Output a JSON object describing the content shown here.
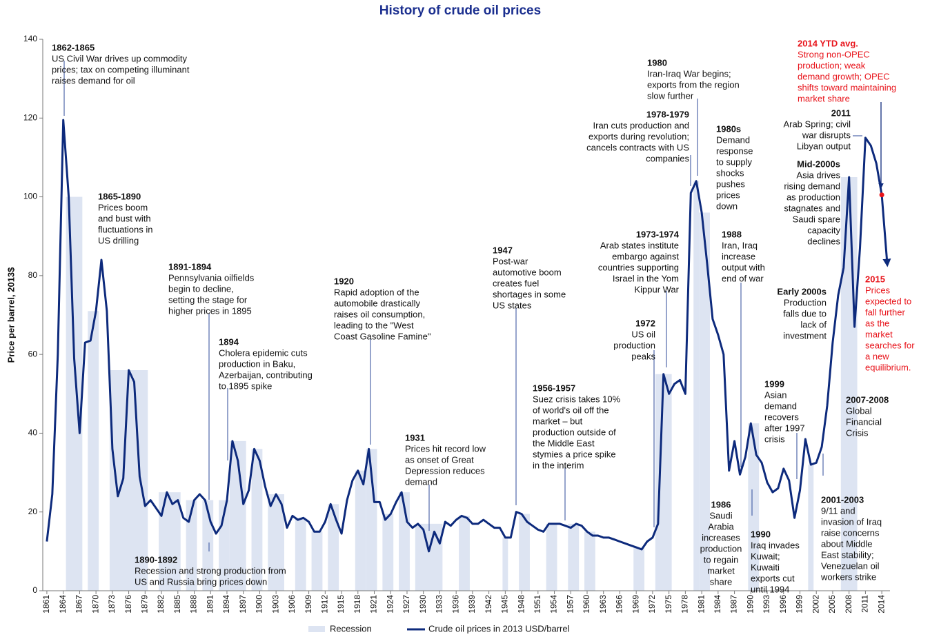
{
  "chart_data": {
    "type": "line",
    "title": "History of crude oil prices",
    "ylabel": "Price per barrel, 2013$",
    "xlim": [
      1860.25,
      2015.5
    ],
    "ylim": [
      0,
      140
    ],
    "yticks": [
      0,
      20,
      40,
      60,
      80,
      100,
      120,
      140
    ],
    "xticks": [
      1861,
      1864,
      1867,
      1870,
      1873,
      1876,
      1879,
      1882,
      1885,
      1888,
      1891,
      1894,
      1897,
      1900,
      1903,
      1906,
      1909,
      1912,
      1915,
      1918,
      1921,
      1924,
      1927,
      1930,
      1933,
      1936,
      1939,
      1942,
      1945,
      1948,
      1951,
      1954,
      1957,
      1960,
      1963,
      1966,
      1969,
      1972,
      1975,
      1978,
      1981,
      1984,
      1987,
      1990,
      1993,
      1996,
      1999,
      2002,
      2005,
      2008,
      2011,
      2014
    ],
    "x": [
      1861,
      1862,
      1863,
      1864,
      1865,
      1866,
      1867,
      1868,
      1869,
      1870,
      1871,
      1872,
      1873,
      1874,
      1875,
      1876,
      1877,
      1878,
      1879,
      1880,
      1881,
      1882,
      1883,
      1884,
      1885,
      1886,
      1887,
      1888,
      1889,
      1890,
      1891,
      1892,
      1893,
      1894,
      1895,
      1896,
      1897,
      1898,
      1899,
      1900,
      1901,
      1902,
      1903,
      1904,
      1905,
      1906,
      1907,
      1908,
      1909,
      1910,
      1911,
      1912,
      1913,
      1914,
      1915,
      1916,
      1917,
      1918,
      1919,
      1920,
      1921,
      1922,
      1923,
      1924,
      1925,
      1926,
      1927,
      1928,
      1929,
      1930,
      1931,
      1932,
      1933,
      1934,
      1935,
      1936,
      1937,
      1938,
      1939,
      1940,
      1941,
      1942,
      1943,
      1944,
      1945,
      1946,
      1947,
      1948,
      1949,
      1950,
      1951,
      1952,
      1953,
      1954,
      1955,
      1956,
      1957,
      1958,
      1959,
      1960,
      1961,
      1962,
      1963,
      1964,
      1965,
      1966,
      1967,
      1968,
      1969,
      1970,
      1971,
      1972,
      1973,
      1974,
      1975,
      1976,
      1977,
      1978,
      1979,
      1980,
      1981,
      1982,
      1983,
      1984,
      1985,
      1986,
      1987,
      1988,
      1989,
      1990,
      1991,
      1992,
      1993,
      1994,
      1995,
      1996,
      1997,
      1998,
      1999,
      2000,
      2001,
      2002,
      2003,
      2004,
      2005,
      2006,
      2007,
      2008,
      2009,
      2010,
      2011,
      2012,
      2013,
      2014,
      2015
    ],
    "series": [
      {
        "name": "Crude oil prices in 2013 USD/barrel",
        "color": "#0d2a7c",
        "values": [
          12.5,
          24.5,
          60,
          119.5,
          100,
          59,
          40,
          63,
          63.5,
          71,
          84,
          71,
          36,
          24,
          28.5,
          56,
          53,
          29,
          21.5,
          23,
          21,
          19,
          25,
          22,
          23,
          18.5,
          17.5,
          23,
          24.5,
          23,
          17.5,
          14.5,
          16.5,
          23,
          38,
          33,
          22,
          25.5,
          36,
          33,
          26.5,
          21.5,
          24.5,
          22,
          16,
          19,
          18,
          18.5,
          17.5,
          15,
          15,
          17.5,
          22,
          18,
          14.5,
          23,
          28,
          30.5,
          27,
          36,
          22.5,
          22.5,
          18,
          19.5,
          22.5,
          25,
          17.5,
          16,
          17,
          15.5,
          10,
          15,
          12,
          17.5,
          16.5,
          18,
          19,
          18.5,
          17,
          17,
          18,
          17,
          16,
          16,
          13.5,
          13.5,
          20,
          19.5,
          17.5,
          16.5,
          15.5,
          15,
          17,
          17,
          17,
          16.5,
          16,
          17,
          16.5,
          15,
          14,
          14,
          13.5,
          13.5,
          13,
          12.5,
          12,
          11.5,
          11,
          10.5,
          12.5,
          13.5,
          17,
          55,
          50,
          52.5,
          53.5,
          50,
          101,
          104,
          96,
          83,
          69,
          65,
          60,
          30.5,
          38,
          29.5,
          34,
          42.5,
          34.5,
          32.5,
          27.5,
          25,
          26,
          31,
          28,
          18.5,
          25.5,
          38.5,
          32,
          32.5,
          36.5,
          47,
          63,
          75,
          82,
          105,
          67,
          87,
          115,
          113,
          108.5,
          100.5,
          83
        ]
      }
    ],
    "highlight": {
      "x": 2014,
      "color": "#e8141b"
    },
    "recession_label": "Recession",
    "recession_color": "#dde4f2",
    "recessions": [
      [
        1865,
        1867
      ],
      [
        1869,
        1870
      ],
      [
        1873,
        1879
      ],
      [
        1882,
        1885
      ],
      [
        1887,
        1888
      ],
      [
        1890,
        1891
      ],
      [
        1893,
        1894
      ],
      [
        1895,
        1897
      ],
      [
        1899,
        1900
      ],
      [
        1902,
        1904
      ],
      [
        1907,
        1908
      ],
      [
        1910,
        1911
      ],
      [
        1913,
        1914
      ],
      [
        1918,
        1919
      ],
      [
        1920,
        1921
      ],
      [
        1923,
        1924
      ],
      [
        1926,
        1927
      ],
      [
        1929,
        1933
      ],
      [
        1937,
        1938
      ],
      [
        1945,
        1945
      ],
      [
        1948,
        1949
      ],
      [
        1953,
        1954
      ],
      [
        1957,
        1958
      ],
      [
        1960,
        1961
      ],
      [
        1969,
        1970
      ],
      [
        1973,
        1975
      ],
      [
        1980,
        1980
      ],
      [
        1981,
        1982
      ],
      [
        1990,
        1991
      ],
      [
        2001,
        2001
      ],
      [
        2007,
        2009
      ]
    ],
    "annotations": [
      {
        "title": "1862-1865",
        "lines": [
          "US Civil War drives up commodity",
          "prices; tax on competing illuminant",
          "raises demand for oil"
        ]
      },
      {
        "title": "1865-1890",
        "lines": [
          "Prices boom",
          "and bust with",
          "fluctuations in",
          "US drilling"
        ]
      },
      {
        "title": "1891-1894",
        "lines": [
          "Pennsylvania oilfields",
          "begin to decline,",
          "setting the stage for",
          "higher prices in 1895"
        ]
      },
      {
        "title": "1890-1892",
        "lines": [
          "Recession and strong production from",
          "US and Russia bring prices down"
        ]
      },
      {
        "title": "1894",
        "lines": [
          "Cholera epidemic cuts",
          "production in Baku,",
          "Azerbaijan, contributing",
          "to 1895 spike"
        ]
      },
      {
        "title": "1920",
        "lines": [
          "Rapid adoption of the",
          "automobile drastically",
          "raises oil consumption,",
          "leading to the \"West",
          "Coast Gasoline Famine\""
        ]
      },
      {
        "title": "1931",
        "lines": [
          "Prices hit record low",
          "as onset of Great",
          "Depression reduces",
          "demand"
        ]
      },
      {
        "title": "1947",
        "lines": [
          "Post-war",
          "automotive boom",
          "creates fuel",
          "shortages in some",
          "US states"
        ]
      },
      {
        "title": "1956-1957",
        "lines": [
          "Suez crisis takes 10%",
          "of world's oil off the",
          "market – but",
          "production outside of",
          "the Middle East",
          "stymies a price spike",
          "in the interim"
        ]
      },
      {
        "title": "1972",
        "lines": [
          "US oil",
          "production",
          "peaks"
        ]
      },
      {
        "title": "1973-1974",
        "lines": [
          "Arab states institute",
          "embargo against",
          "countries supporting",
          "Israel in the Yom",
          "Kippur War"
        ]
      },
      {
        "title": "1978-1979",
        "lines": [
          "Iran cuts production and",
          "exports during revolution;",
          "cancels contracts with US",
          "companies"
        ]
      },
      {
        "title": "1980",
        "lines": [
          "Iran-Iraq War begins;",
          "exports from the region",
          "slow further"
        ]
      },
      {
        "title": "1980s",
        "lines": [
          "Demand",
          "response",
          "to supply",
          "shocks",
          "pushes",
          "prices",
          "down"
        ]
      },
      {
        "title": "1988",
        "lines": [
          "Iran, Iraq",
          "increase",
          "output with",
          "end of war"
        ]
      },
      {
        "title": "1986",
        "lines": [
          "Saudi",
          "Arabia",
          "increases",
          "production",
          "to regain",
          "market",
          "share"
        ]
      },
      {
        "title": "1990",
        "lines": [
          "Iraq invades",
          "Kuwait;",
          "Kuwaiti",
          "exports cut",
          "until 1994"
        ]
      },
      {
        "title": "1999",
        "lines": [
          "Asian",
          "demand",
          "recovers",
          "after 1997",
          "crisis"
        ]
      },
      {
        "title": "Early 2000s",
        "lines": [
          "Production",
          "falls due to",
          "lack of",
          "investment"
        ]
      },
      {
        "title": "2001-2003",
        "lines": [
          "9/11 and",
          "invasion of Iraq",
          "raise concerns",
          "about Middle",
          "East stability;",
          "Venezuelan oil",
          "workers strike"
        ]
      },
      {
        "title": "Mid-2000s",
        "lines": [
          "Asia drives",
          "rising demand",
          "as production",
          "stagnates and",
          "Saudi spare",
          "capacity",
          "declines"
        ]
      },
      {
        "title": "2011",
        "lines": [
          "Arab Spring; civil",
          "war disrupts",
          "Libyan output"
        ]
      },
      {
        "title": "2007-2008",
        "lines": [
          "Global",
          "Financial",
          "Crisis"
        ]
      },
      {
        "title": "2014 YTD avg.",
        "lines": [
          "Strong non-OPEC",
          "production; weak",
          "demand growth; OPEC",
          "shifts toward maintaining",
          "market share"
        ],
        "color": "#e8141b"
      },
      {
        "title": "2015",
        "lines": [
          "Prices",
          "expected to",
          "fall further",
          "as the",
          "market",
          "searches for",
          "a new",
          "equilibrium."
        ],
        "color": "#e8141b"
      }
    ]
  }
}
